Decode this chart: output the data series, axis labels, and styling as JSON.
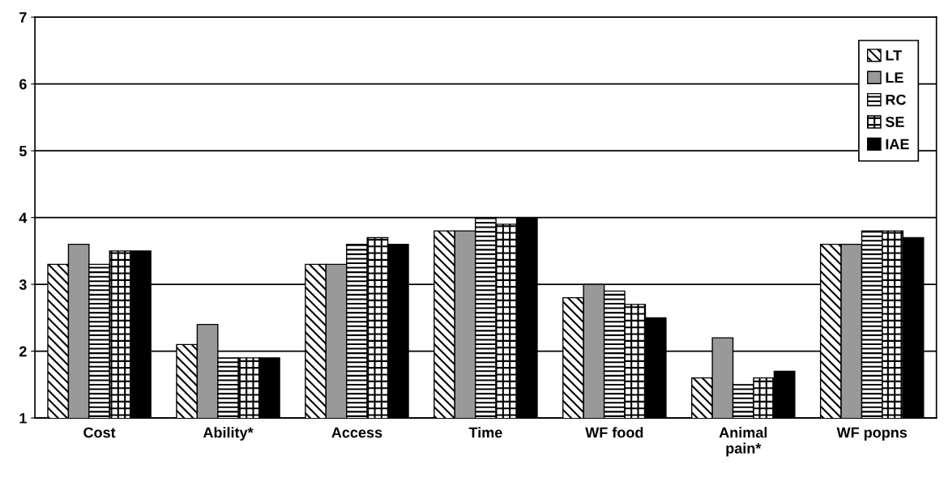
{
  "chart_data": {
    "type": "bar",
    "categories": [
      "Cost",
      "Ability*",
      "Access",
      "Time",
      "WF food",
      "Animal\npain*",
      "WF popns"
    ],
    "series": [
      {
        "name": "LT",
        "color": "#000000",
        "values": [
          3.3,
          2.1,
          3.3,
          3.8,
          2.8,
          1.6,
          3.6
        ]
      },
      {
        "name": "LE",
        "color": "#999999",
        "values": [
          3.6,
          2.4,
          3.3,
          3.8,
          3.0,
          2.2,
          3.6
        ]
      },
      {
        "name": "RC",
        "color": "#000000",
        "values": [
          3.3,
          1.9,
          3.6,
          4.0,
          2.9,
          1.5,
          3.8
        ]
      },
      {
        "name": "SE",
        "color": "#000000",
        "values": [
          3.5,
          1.9,
          3.7,
          3.9,
          2.7,
          1.6,
          3.8
        ]
      },
      {
        "name": "IAE",
        "color": "#000000",
        "values": [
          3.5,
          1.9,
          3.6,
          4.0,
          2.5,
          1.7,
          3.7
        ]
      }
    ],
    "ylim": [
      1,
      7
    ],
    "yticks": [
      1,
      2,
      3,
      4,
      5,
      6,
      7
    ],
    "grid": "y",
    "legend": "top right"
  }
}
